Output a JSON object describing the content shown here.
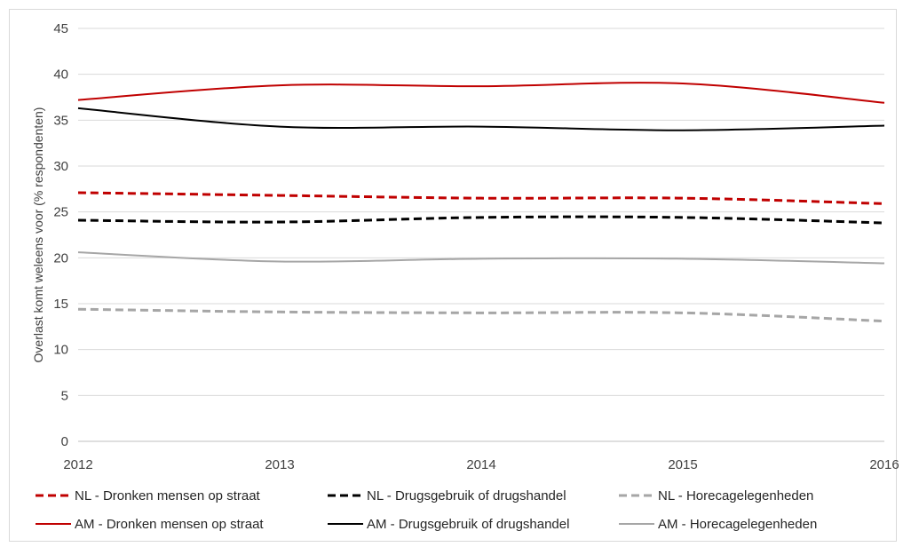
{
  "chart_data": {
    "type": "line",
    "title": "",
    "xlabel": "",
    "ylabel": "Overlast komt weleens voor (% respondenten)",
    "ylim": [
      0,
      45
    ],
    "yticks": [
      0,
      5,
      10,
      15,
      20,
      25,
      30,
      35,
      40,
      45
    ],
    "x": [
      2012,
      2013,
      2014,
      2015,
      2016
    ],
    "grid": "horizontal",
    "legend_position": "bottom",
    "series": [
      {
        "name": "NL - Dronken mensen op straat",
        "color": "#c00000",
        "dash": "dashed",
        "values": [
          27.1,
          26.8,
          26.5,
          26.5,
          25.9
        ]
      },
      {
        "name": "NL - Drugsgebruik of drugshandel",
        "color": "#000000",
        "dash": "dashed",
        "values": [
          24.1,
          23.9,
          24.4,
          24.4,
          23.8
        ]
      },
      {
        "name": "NL - Horecagelegenheden",
        "color": "#a6a6a6",
        "dash": "dashed",
        "values": [
          14.4,
          14.1,
          14.0,
          14.0,
          13.1
        ]
      },
      {
        "name": "AM - Dronken mensen op straat",
        "color": "#c00000",
        "dash": "solid",
        "values": [
          37.2,
          38.8,
          38.7,
          39.0,
          36.9
        ]
      },
      {
        "name": "AM - Drugsgebruik of drugshandel",
        "color": "#000000",
        "dash": "solid",
        "values": [
          36.3,
          34.3,
          34.3,
          33.9,
          34.4
        ]
      },
      {
        "name": "AM - Horecagelegenheden",
        "color": "#a6a6a6",
        "dash": "solid",
        "values": [
          20.6,
          19.6,
          19.9,
          19.9,
          19.4
        ]
      }
    ]
  }
}
